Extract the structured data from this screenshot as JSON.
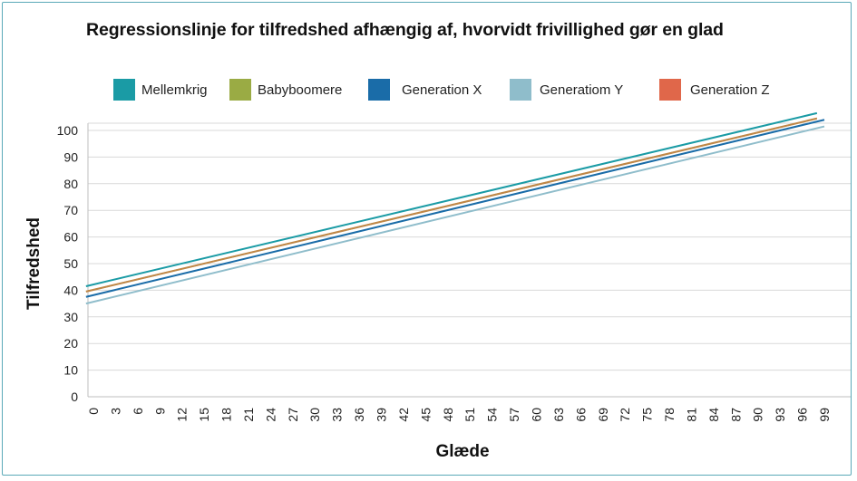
{
  "chart_data": {
    "type": "line",
    "title": "Regressionslinje for tilfredshed afhængig af, hvorvidt frivillighed gør en glad",
    "xlabel": "Glæde",
    "ylabel": "Tilfredshed",
    "xlim": [
      0,
      99
    ],
    "ylim": [
      0,
      100
    ],
    "x_ticks": [
      0,
      3,
      6,
      9,
      12,
      15,
      18,
      21,
      24,
      27,
      30,
      33,
      36,
      39,
      42,
      45,
      48,
      51,
      54,
      57,
      60,
      63,
      66,
      69,
      72,
      75,
      78,
      81,
      84,
      87,
      90,
      93,
      96,
      99
    ],
    "y_ticks": [
      0,
      10,
      20,
      30,
      40,
      50,
      60,
      70,
      80,
      90,
      100
    ],
    "grid": "horizontal",
    "legend_position": "top",
    "series": [
      {
        "name": "Mellemkrig",
        "color": "#1a9ba5",
        "x": [
          -1,
          98
        ],
        "y": [
          41.5,
          106.5
        ]
      },
      {
        "name": "Babyboomere",
        "color": "#9aab44",
        "x": [
          -1,
          98
        ],
        "y": [
          39.5,
          104.5
        ]
      },
      {
        "name": "Generation X",
        "color": "#1a6ca8",
        "x": [
          -1,
          99
        ],
        "y": [
          37.5,
          104.0
        ]
      },
      {
        "name": "Generatiom Y",
        "color": "#8fbdcb",
        "x": [
          -1,
          99
        ],
        "y": [
          35.0,
          101.5
        ]
      },
      {
        "name": "Generation Z",
        "color": "#e0674a",
        "x": [
          -1,
          98
        ],
        "y": [
          39.5,
          104.5
        ]
      }
    ]
  }
}
